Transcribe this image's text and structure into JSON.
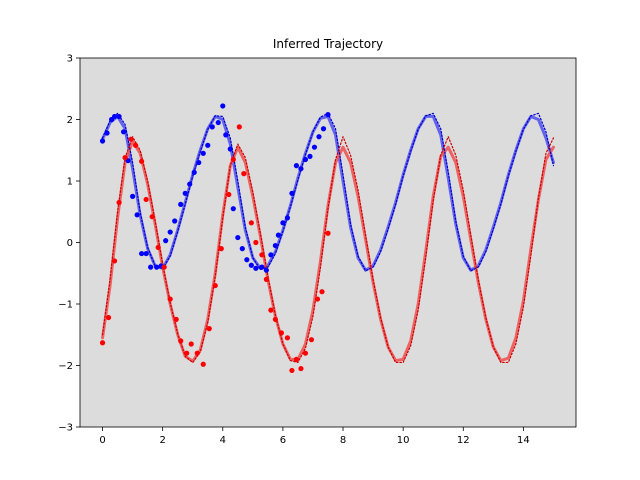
{
  "chart_data": {
    "type": "line",
    "title": "Inferred Trajectory",
    "xlabel": "",
    "ylabel": "",
    "xlim": [
      -0.75,
      15.75
    ],
    "ylim": [
      -3,
      3
    ],
    "xticks": [
      0,
      2,
      4,
      6,
      8,
      10,
      12,
      14
    ],
    "yticks": [
      -3,
      -2,
      -1,
      0,
      1,
      2,
      3
    ],
    "xtick_labels": [
      "0",
      "2",
      "4",
      "6",
      "8",
      "10",
      "12",
      "14"
    ],
    "ytick_labels": [
      "−3",
      "−2",
      "−1",
      "0",
      "1",
      "2",
      "3"
    ],
    "background_color": "#dcdcdc",
    "grid": false,
    "legend": false,
    "series": [
      {
        "kind": "inferred-line",
        "color": "#5555ee",
        "x": [
          0.0,
          0.25,
          0.5,
          0.75,
          1.0,
          1.25,
          1.5,
          1.75,
          2.0,
          2.25,
          2.5,
          2.75,
          3.0,
          3.25,
          3.5,
          3.75,
          4.0,
          4.25,
          4.5,
          4.75,
          5.0,
          5.25,
          5.5,
          5.75,
          6.0,
          6.25,
          6.5,
          6.75,
          7.0,
          7.25,
          7.5,
          7.75,
          8.0,
          8.25,
          8.5,
          8.75,
          9.0,
          9.25,
          9.5,
          9.75,
          10.0,
          10.25,
          10.5,
          10.75,
          11.0,
          11.25,
          11.5,
          11.75,
          12.0,
          12.25,
          12.5,
          12.75,
          13.0,
          13.25,
          13.5,
          13.75,
          14.0,
          14.25,
          14.5,
          14.75,
          15.0
        ],
        "y": [
          1.68,
          1.95,
          2.05,
          1.85,
          1.2,
          0.45,
          -0.1,
          -0.38,
          -0.42,
          -0.2,
          0.2,
          0.65,
          1.1,
          1.5,
          1.85,
          2.05,
          2.0,
          1.6,
          0.9,
          0.2,
          -0.25,
          -0.42,
          -0.38,
          -0.15,
          0.2,
          0.6,
          1.05,
          1.45,
          1.8,
          2.02,
          2.05,
          1.75,
          1.0,
          0.25,
          -0.25,
          -0.45,
          -0.38,
          -0.12,
          0.25,
          0.65,
          1.1,
          1.5,
          1.85,
          2.05,
          2.05,
          1.75,
          1.05,
          0.3,
          -0.25,
          -0.45,
          -0.38,
          -0.12,
          0.25,
          0.65,
          1.1,
          1.5,
          1.85,
          2.05,
          2.0,
          1.7,
          1.3
        ]
      },
      {
        "kind": "true-dotted",
        "color": "#0000cc",
        "x": [
          0.0,
          0.25,
          0.5,
          0.75,
          1.0,
          1.25,
          1.5,
          1.75,
          2.0,
          2.25,
          2.5,
          2.75,
          3.0,
          3.25,
          3.5,
          3.75,
          4.0,
          4.25,
          4.5,
          4.75,
          5.0,
          5.25,
          5.5,
          5.75,
          6.0,
          6.25,
          6.5,
          6.75,
          7.0,
          7.25,
          7.5,
          7.75,
          8.0,
          8.25,
          8.5,
          8.75,
          9.0,
          9.25,
          9.5,
          9.75,
          10.0,
          10.25,
          10.5,
          10.75,
          11.0,
          11.25,
          11.5,
          11.75,
          12.0,
          12.25,
          12.5,
          12.75,
          13.0,
          13.25,
          13.5,
          13.75,
          14.0,
          14.25,
          14.5,
          14.75,
          15.0
        ],
        "y": [
          1.7,
          1.98,
          2.1,
          1.92,
          1.3,
          0.5,
          -0.08,
          -0.38,
          -0.43,
          -0.22,
          0.18,
          0.62,
          1.08,
          1.48,
          1.84,
          2.06,
          2.05,
          1.7,
          1.0,
          0.25,
          -0.25,
          -0.44,
          -0.4,
          -0.18,
          0.18,
          0.58,
          1.02,
          1.43,
          1.8,
          2.04,
          2.1,
          1.85,
          1.1,
          0.3,
          -0.22,
          -0.46,
          -0.4,
          -0.15,
          0.22,
          0.62,
          1.08,
          1.48,
          1.84,
          2.06,
          2.1,
          1.85,
          1.15,
          0.35,
          -0.22,
          -0.46,
          -0.4,
          -0.15,
          0.22,
          0.62,
          1.08,
          1.48,
          1.84,
          2.06,
          2.1,
          1.8,
          1.25
        ]
      },
      {
        "kind": "inferred-line",
        "color": "#ee5555",
        "x": [
          0.0,
          0.25,
          0.5,
          0.75,
          1.0,
          1.25,
          1.5,
          1.75,
          2.0,
          2.25,
          2.5,
          2.75,
          3.0,
          3.25,
          3.5,
          3.75,
          4.0,
          4.25,
          4.5,
          4.75,
          5.0,
          5.25,
          5.5,
          5.75,
          6.0,
          6.25,
          6.5,
          6.75,
          7.0,
          7.25,
          7.5,
          7.75,
          8.0,
          8.25,
          8.5,
          8.75,
          9.0,
          9.25,
          9.5,
          9.75,
          10.0,
          10.25,
          10.5,
          10.75,
          11.0,
          11.25,
          11.5,
          11.75,
          12.0,
          12.25,
          12.5,
          12.75,
          13.0,
          13.25,
          13.5,
          13.75,
          14.0,
          14.25,
          14.5,
          14.75,
          15.0
        ],
        "y": [
          -1.55,
          -0.7,
          0.4,
          1.3,
          1.65,
          1.45,
          0.95,
          0.3,
          -0.4,
          -1.0,
          -1.5,
          -1.85,
          -1.93,
          -1.75,
          -1.25,
          -0.5,
          0.45,
          1.25,
          1.55,
          1.3,
          0.75,
          0.1,
          -0.6,
          -1.2,
          -1.65,
          -1.9,
          -1.9,
          -1.65,
          -1.1,
          -0.3,
          0.6,
          1.3,
          1.55,
          1.3,
          0.75,
          0.05,
          -0.65,
          -1.25,
          -1.7,
          -1.92,
          -1.9,
          -1.6,
          -1.0,
          -0.15,
          0.75,
          1.4,
          1.55,
          1.3,
          0.75,
          0.05,
          -0.65,
          -1.25,
          -1.7,
          -1.92,
          -1.88,
          -1.55,
          -0.95,
          -0.1,
          0.7,
          1.35,
          1.55
        ]
      },
      {
        "kind": "true-dotted",
        "color": "#cc0000",
        "x": [
          0.0,
          0.25,
          0.5,
          0.75,
          1.0,
          1.25,
          1.5,
          1.75,
          2.0,
          2.25,
          2.5,
          2.75,
          3.0,
          3.25,
          3.5,
          3.75,
          4.0,
          4.25,
          4.5,
          4.75,
          5.0,
          5.25,
          5.5,
          5.75,
          6.0,
          6.25,
          6.5,
          6.75,
          7.0,
          7.25,
          7.5,
          7.75,
          8.0,
          8.25,
          8.5,
          8.75,
          9.0,
          9.25,
          9.5,
          9.75,
          10.0,
          10.25,
          10.5,
          10.75,
          11.0,
          11.25,
          11.5,
          11.75,
          12.0,
          12.25,
          12.5,
          12.75,
          13.0,
          13.25,
          13.5,
          13.75,
          14.0,
          14.25,
          14.5,
          14.75,
          15.0
        ],
        "y": [
          -1.5,
          -0.6,
          0.5,
          1.38,
          1.72,
          1.5,
          1.0,
          0.35,
          -0.35,
          -0.98,
          -1.48,
          -1.85,
          -1.95,
          -1.78,
          -1.3,
          -0.55,
          0.4,
          1.25,
          1.6,
          1.38,
          0.82,
          0.15,
          -0.55,
          -1.18,
          -1.65,
          -1.92,
          -1.95,
          -1.72,
          -1.2,
          -0.4,
          0.55,
          1.35,
          1.72,
          1.42,
          0.85,
          0.12,
          -0.6,
          -1.22,
          -1.7,
          -1.95,
          -1.95,
          -1.68,
          -1.1,
          -0.25,
          0.68,
          1.42,
          1.72,
          1.42,
          0.85,
          0.12,
          -0.6,
          -1.22,
          -1.7,
          -1.95,
          -1.95,
          -1.65,
          -1.05,
          -0.2,
          0.72,
          1.45,
          1.7
        ]
      },
      {
        "kind": "observations",
        "color": "#0000ff",
        "x": [
          0.0,
          0.15,
          0.3,
          0.4,
          0.55,
          0.7,
          0.85,
          1.0,
          1.15,
          1.3,
          1.45,
          1.6,
          1.8,
          1.95,
          2.1,
          2.25,
          2.4,
          2.6,
          2.75,
          2.9,
          3.05,
          3.2,
          3.35,
          3.5,
          3.65,
          3.85,
          4.0,
          4.1,
          4.25,
          4.35,
          4.5,
          4.65,
          4.8,
          4.95,
          5.1,
          5.3,
          5.45,
          5.6,
          5.75,
          5.85,
          6.0,
          6.15,
          6.3,
          6.45,
          6.6,
          6.75,
          6.9,
          7.05,
          7.2,
          7.35,
          7.5
        ],
        "y": [
          1.65,
          1.78,
          2.0,
          2.05,
          2.05,
          1.8,
          1.33,
          0.75,
          0.45,
          -0.18,
          -0.18,
          -0.4,
          -0.4,
          -0.38,
          0.03,
          0.17,
          0.35,
          0.62,
          0.8,
          0.95,
          1.14,
          1.3,
          1.45,
          1.58,
          1.88,
          1.95,
          2.22,
          1.75,
          1.52,
          0.55,
          0.08,
          -0.1,
          -0.28,
          -0.37,
          -0.42,
          -0.4,
          -0.45,
          -0.2,
          -0.05,
          0.12,
          0.32,
          0.4,
          0.8,
          1.25,
          1.2,
          1.35,
          1.4,
          1.55,
          1.72,
          1.85,
          2.08
        ]
      },
      {
        "kind": "observations",
        "color": "#ff0000",
        "x": [
          0.0,
          0.2,
          0.4,
          0.55,
          0.75,
          0.95,
          1.1,
          1.3,
          1.45,
          1.65,
          1.85,
          2.05,
          2.25,
          2.45,
          2.6,
          2.8,
          2.95,
          3.15,
          3.35,
          3.55,
          3.75,
          3.95,
          4.2,
          4.35,
          4.55,
          4.7,
          4.95,
          5.1,
          5.3,
          5.45,
          5.6,
          5.75,
          5.95,
          6.15,
          6.3,
          6.45,
          6.6,
          6.75,
          6.95,
          7.15,
          7.3,
          7.5
        ],
        "y": [
          -1.63,
          -1.22,
          -0.3,
          0.65,
          1.38,
          1.68,
          1.58,
          1.32,
          0.7,
          0.42,
          -0.08,
          -0.4,
          -0.92,
          -1.25,
          -1.6,
          -1.8,
          -1.65,
          -1.8,
          -1.98,
          -1.4,
          -0.7,
          -0.1,
          0.78,
          1.35,
          1.88,
          1.12,
          0.32,
          0.0,
          -0.2,
          -0.6,
          -1.1,
          -1.25,
          -1.47,
          -1.55,
          -2.08,
          -1.9,
          -2.05,
          -1.8,
          -1.58,
          -0.92,
          -0.8,
          0.15
        ]
      }
    ]
  }
}
